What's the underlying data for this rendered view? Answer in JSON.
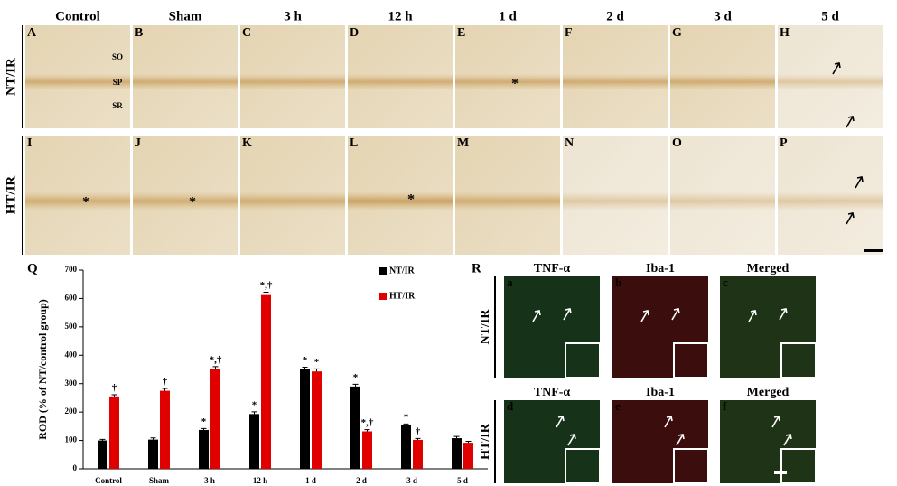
{
  "figure": {
    "columns": [
      "Control",
      "Sham",
      "3 h",
      "12 h",
      "1 d",
      "2 d",
      "3 d",
      "5 d"
    ],
    "rows": [
      "NT/IR",
      "HT/IR"
    ],
    "panel_letters": [
      "A",
      "B",
      "C",
      "D",
      "E",
      "F",
      "G",
      "H",
      "I",
      "J",
      "K",
      "L",
      "M",
      "N",
      "O",
      "P"
    ],
    "layers": [
      "SO",
      "SP",
      "SR"
    ],
    "asterisk": "*"
  },
  "r_panel": {
    "letter": "R",
    "headers": [
      "TNF-α",
      "Iba-1",
      "Merged"
    ],
    "rows": [
      "NT/IR",
      "HT/IR"
    ],
    "letters": [
      "a",
      "b",
      "c",
      "d",
      "e",
      "f"
    ]
  },
  "chart_data": {
    "type": "bar",
    "panel_letter": "Q",
    "y_label": "ROD (% of NT/control group)",
    "categories": [
      "Control",
      "Sham",
      "3 h",
      "12 h",
      "1 d",
      "2 d",
      "3 d",
      "5 d"
    ],
    "ylim": [
      0,
      700
    ],
    "yticks": [
      0,
      100,
      200,
      300,
      400,
      500,
      600,
      700
    ],
    "series": [
      {
        "name": "NT/IR",
        "color": "#000000",
        "values": [
          100,
          103,
          137,
          193,
          350,
          290,
          153,
          108
        ],
        "errors": [
          4,
          6,
          5,
          8,
          8,
          8,
          5,
          6
        ],
        "annotations": [
          null,
          null,
          "*",
          "*",
          "*",
          "*",
          "*",
          null
        ]
      },
      {
        "name": "HT/IR",
        "color": "#e00000",
        "values": [
          255,
          275,
          352,
          612,
          343,
          132,
          102,
          92
        ],
        "errors": [
          6,
          8,
          8,
          10,
          9,
          6,
          5,
          5
        ],
        "annotations": [
          "†",
          "†",
          "*,†",
          "*,†",
          "*",
          "*,†",
          "†",
          null
        ]
      }
    ]
  }
}
